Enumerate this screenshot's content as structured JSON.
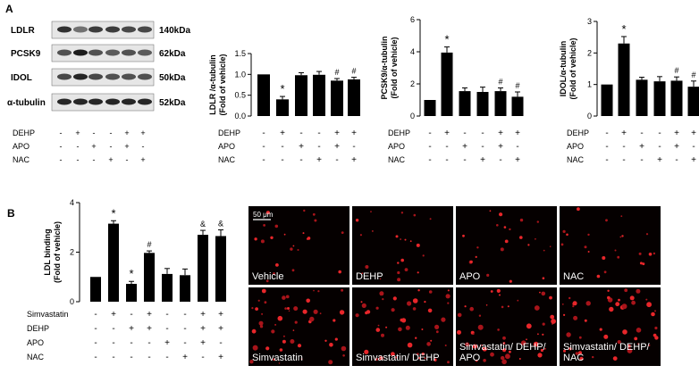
{
  "panel_letters": [
    "A",
    "B"
  ],
  "blot": {
    "rows": [
      {
        "name": "LDLR",
        "kda": "140kDa"
      },
      {
        "name": "PCSK9",
        "kda": "62kDa"
      },
      {
        "name": "IDOL",
        "kda": "50kDa"
      },
      {
        "name": "α-tubulin",
        "kda": "52kDa"
      }
    ],
    "treatments": [
      {
        "name": "DEHP",
        "signs": [
          "-",
          "+",
          "-",
          "-",
          "+",
          "+"
        ]
      },
      {
        "name": "APO",
        "signs": [
          "-",
          "-",
          "+",
          "-",
          "+",
          "-"
        ]
      },
      {
        "name": "NAC",
        "signs": [
          "-",
          "-",
          "-",
          "+",
          "-",
          "+"
        ]
      }
    ]
  },
  "chart_data": [
    {
      "type": "bar",
      "ylabel": "LDLR /α-tubulin\n(Fold of vehicle)",
      "ylim": [
        0,
        1.5
      ],
      "yticks": [
        "0.0",
        "0.5",
        "1.0",
        "1.5"
      ],
      "values": [
        1.0,
        0.4,
        0.98,
        0.99,
        0.85,
        0.88
      ],
      "errors": [
        0,
        0.07,
        0.06,
        0.08,
        0.05,
        0.05
      ],
      "annotations": [
        "",
        "*",
        "",
        "",
        "#",
        "#"
      ],
      "treatments": [
        {
          "name": "DEHP",
          "signs": [
            "-",
            "+",
            "-",
            "-",
            "+",
            "+"
          ]
        },
        {
          "name": "APO",
          "signs": [
            "-",
            "-",
            "+",
            "-",
            "+",
            "-"
          ]
        },
        {
          "name": "NAC",
          "signs": [
            "-",
            "-",
            "-",
            "+",
            "-",
            "+"
          ]
        }
      ]
    },
    {
      "type": "bar",
      "ylabel": "PCSK9/α-tubulin\n(Fold of vehicle)",
      "ylim": [
        0,
        6
      ],
      "yticks": [
        "0",
        "2",
        "4",
        "6"
      ],
      "values": [
        1.0,
        3.95,
        1.55,
        1.5,
        1.55,
        1.2
      ],
      "errors": [
        0,
        0.35,
        0.2,
        0.3,
        0.2,
        0.3
      ],
      "annotations": [
        "",
        "*",
        "",
        "",
        "#",
        "#"
      ],
      "treatments": [
        {
          "name": "DEHP",
          "signs": [
            "-",
            "+",
            "-",
            "-",
            "+",
            "+"
          ]
        },
        {
          "name": "APO",
          "signs": [
            "-",
            "-",
            "+",
            "-",
            "+",
            "-"
          ]
        },
        {
          "name": "NAC",
          "signs": [
            "-",
            "-",
            "-",
            "+",
            "-",
            "+"
          ]
        }
      ]
    },
    {
      "type": "bar",
      "ylabel": "IDOL/α-tubulin\n(Fold of vehicle)",
      "ylim": [
        0,
        3
      ],
      "yticks": [
        "0",
        "1",
        "2",
        "3"
      ],
      "values": [
        1.0,
        2.3,
        1.15,
        1.1,
        1.12,
        0.93
      ],
      "errors": [
        0,
        0.22,
        0.08,
        0.15,
        0.12,
        0.18
      ],
      "annotations": [
        "",
        "*",
        "",
        "",
        "#",
        "#"
      ],
      "treatments": [
        {
          "name": "DEHP",
          "signs": [
            "-",
            "+",
            "-",
            "-",
            "+",
            "+"
          ]
        },
        {
          "name": "APO",
          "signs": [
            "-",
            "-",
            "+",
            "-",
            "+",
            "-"
          ]
        },
        {
          "name": "NAC",
          "signs": [
            "-",
            "-",
            "-",
            "+",
            "-",
            "+"
          ]
        }
      ]
    },
    {
      "type": "bar",
      "ylabel": "LDL binding\n(Fold of vehicle)",
      "ylim": [
        0,
        4
      ],
      "yticks": [
        "0",
        "2",
        "4"
      ],
      "values": [
        1.0,
        3.15,
        0.72,
        1.97,
        1.12,
        1.07,
        2.7,
        2.65
      ],
      "errors": [
        0,
        0.12,
        0.1,
        0.08,
        0.22,
        0.25,
        0.18,
        0.25
      ],
      "annotations": [
        "",
        "*",
        "*",
        "#",
        "",
        "",
        "&",
        "&"
      ],
      "treatments": [
        {
          "name": "Simvastatin",
          "signs": [
            "-",
            "+",
            "-",
            "+",
            "-",
            "-",
            "+",
            "+"
          ]
        },
        {
          "name": "DEHP",
          "signs": [
            "-",
            "-",
            "+",
            "+",
            "-",
            "-",
            "+",
            "+"
          ]
        },
        {
          "name": "APO",
          "signs": [
            "-",
            "-",
            "-",
            "-",
            "+",
            "-",
            "+",
            "-"
          ]
        },
        {
          "name": "NAC",
          "signs": [
            "-",
            "-",
            "-",
            "-",
            "-",
            "+",
            "-",
            "+"
          ]
        }
      ]
    }
  ],
  "micrographs": {
    "scale_bar": "50 μm",
    "panels": [
      "Vehicle",
      "DEHP",
      "APO",
      "NAC",
      "Simvastatin",
      "Simvastatin/ DEHP",
      "Simvastatin/ DEHP/\nAPO",
      "Simvastatin/ DEHP/\nNAC"
    ]
  }
}
